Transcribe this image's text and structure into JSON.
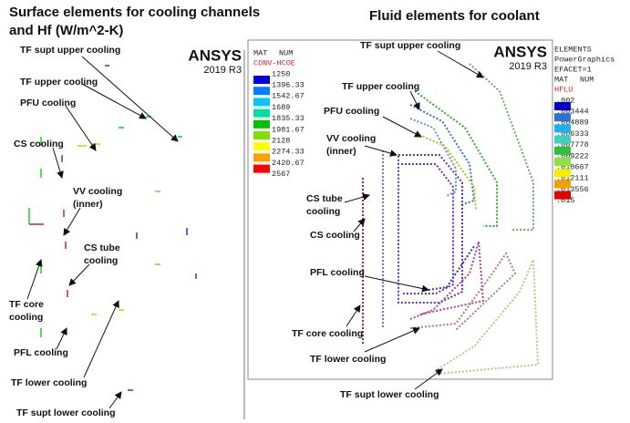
{
  "left_panel": {
    "title": [
      "Surface elements for cooling channels",
      "and Hf (W/m^2-K)"
    ],
    "labels": [
      [
        "TF supt upper cooling"
      ],
      [
        "TF upper cooling"
      ],
      [
        "PFU cooling"
      ],
      [
        "CS cooling"
      ],
      [
        "VV cooling",
        "(inner)"
      ],
      [
        "CS tube",
        "cooling"
      ],
      [
        "TF core",
        "cooling"
      ],
      [
        "PFL cooling"
      ],
      [
        "TF lower cooling"
      ],
      [
        "TF supt lower cooling"
      ]
    ],
    "ansys": {
      "logo": "ANSYS",
      "version": "2019 R3",
      "header": [
        "MAT",
        "NUM"
      ],
      "legend_title": "CONV-HCOE",
      "legend_values": [
        "1250",
        "1396.33",
        "1542.67",
        "1689",
        "1835.33",
        "1981.67",
        "2128",
        "2274.33",
        "2420.67",
        "2567"
      ],
      "legend_colors": [
        "#0000e0",
        "#0080ff",
        "#00c8ff",
        "#00e0a0",
        "#00c000",
        "#80e000",
        "#ffff00",
        "#ffa000",
        "#ff0000"
      ]
    }
  },
  "right_panel": {
    "title": [
      "Fluid elements for coolant"
    ],
    "labels": [
      [
        "TF supt upper cooling"
      ],
      [
        "TF upper cooling"
      ],
      [
        "PFU cooling"
      ],
      [
        "VV cooling",
        "(inner)"
      ],
      [
        "CS tube",
        "cooling"
      ],
      [
        "CS cooling"
      ],
      [
        "PFL cooling"
      ],
      [
        "TF core cooling"
      ],
      [
        "TF lower cooling"
      ],
      [
        "TF supt lower cooling"
      ]
    ],
    "ansys": {
      "logo": "ANSYS",
      "version": "2019 R3",
      "header_lines": [
        "ELEMENTS",
        "PowerGraphics",
        "EFACET=1"
      ],
      "header": [
        "MAT",
        "NUM"
      ],
      "legend_title": "HFLU",
      "legend_values": [
        ".002",
        ".003444",
        ".004889",
        ".006333",
        ".007778",
        ".009222",
        ".010667",
        ".012111",
        ".013556",
        ".015"
      ],
      "legend_colors": [
        "#0000c0",
        "#3070d0",
        "#20b0e8",
        "#40d0c0",
        "#30c040",
        "#90e040",
        "#f0f000",
        "#f0a000",
        "#e00000"
      ]
    }
  }
}
